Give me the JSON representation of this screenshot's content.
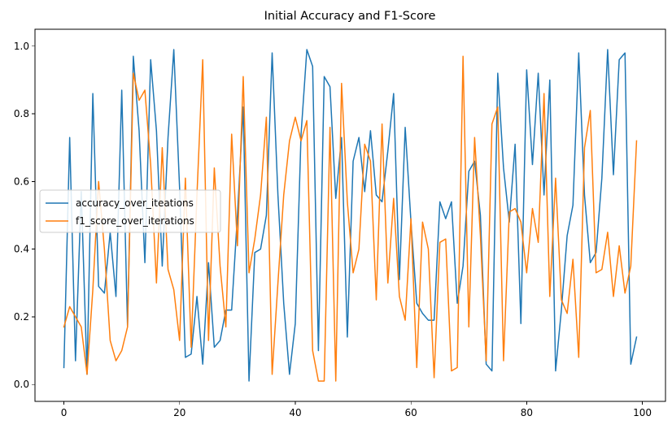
{
  "chart_data": {
    "type": "line",
    "title": "Initial Accuracy and F1-Score",
    "xlabel": "",
    "ylabel": "",
    "xlim": [
      -5,
      104
    ],
    "ylim": [
      -0.05,
      1.05
    ],
    "xticks": [
      0,
      20,
      40,
      60,
      80,
      100
    ],
    "yticks": [
      0.0,
      0.2,
      0.4,
      0.6,
      0.8,
      1.0
    ],
    "xtick_labels": [
      "0",
      "20",
      "40",
      "60",
      "80",
      "100"
    ],
    "ytick_labels": [
      "0.0",
      "0.2",
      "0.4",
      "0.6",
      "0.8",
      "1.0"
    ],
    "grid": false,
    "legend_position": "center-left",
    "series": [
      {
        "name": "accuracy_over_iteations",
        "color": "#1f77b4",
        "values": [
          0.05,
          0.73,
          0.07,
          0.57,
          0.03,
          0.86,
          0.29,
          0.27,
          0.45,
          0.26,
          0.87,
          0.17,
          0.97,
          0.75,
          0.36,
          0.96,
          0.75,
          0.35,
          0.73,
          0.99,
          0.58,
          0.08,
          0.09,
          0.26,
          0.06,
          0.36,
          0.11,
          0.13,
          0.22,
          0.22,
          0.5,
          0.82,
          0.01,
          0.39,
          0.4,
          0.5,
          0.98,
          0.56,
          0.24,
          0.03,
          0.18,
          0.74,
          0.99,
          0.94,
          0.1,
          0.91,
          0.88,
          0.55,
          0.73,
          0.14,
          0.66,
          0.73,
          0.57,
          0.75,
          0.56,
          0.54,
          0.69,
          0.86,
          0.31,
          0.76,
          0.48,
          0.24,
          0.21,
          0.19,
          0.19,
          0.54,
          0.49,
          0.54,
          0.24,
          0.35,
          0.63,
          0.66,
          0.5,
          0.06,
          0.04,
          0.92,
          0.64,
          0.48,
          0.71,
          0.18,
          0.93,
          0.65,
          0.92,
          0.56,
          0.9,
          0.04,
          0.22,
          0.44,
          0.53,
          0.98,
          0.56,
          0.36,
          0.39,
          0.61,
          0.99,
          0.62,
          0.96,
          0.98,
          0.06,
          0.14
        ]
      },
      {
        "name": "f1_score_over_iterations",
        "color": "#ff7f0e",
        "values": [
          0.17,
          0.23,
          0.2,
          0.17,
          0.03,
          0.28,
          0.6,
          0.4,
          0.13,
          0.07,
          0.1,
          0.17,
          0.92,
          0.84,
          0.87,
          0.65,
          0.3,
          0.7,
          0.34,
          0.28,
          0.13,
          0.61,
          0.11,
          0.56,
          0.96,
          0.13,
          0.64,
          0.35,
          0.17,
          0.74,
          0.41,
          0.91,
          0.33,
          0.43,
          0.56,
          0.79,
          0.03,
          0.3,
          0.56,
          0.72,
          0.79,
          0.72,
          0.78,
          0.1,
          0.01,
          0.01,
          0.76,
          0.01,
          0.89,
          0.54,
          0.33,
          0.4,
          0.71,
          0.66,
          0.25,
          0.77,
          0.3,
          0.55,
          0.26,
          0.19,
          0.49,
          0.05,
          0.48,
          0.4,
          0.02,
          0.42,
          0.43,
          0.04,
          0.05,
          0.97,
          0.17,
          0.73,
          0.44,
          0.07,
          0.77,
          0.82,
          0.07,
          0.51,
          0.52,
          0.48,
          0.33,
          0.52,
          0.42,
          0.86,
          0.26,
          0.61,
          0.25,
          0.21,
          0.37,
          0.08,
          0.7,
          0.81,
          0.33,
          0.34,
          0.45,
          0.26,
          0.41,
          0.27,
          0.35,
          0.72
        ]
      }
    ]
  }
}
